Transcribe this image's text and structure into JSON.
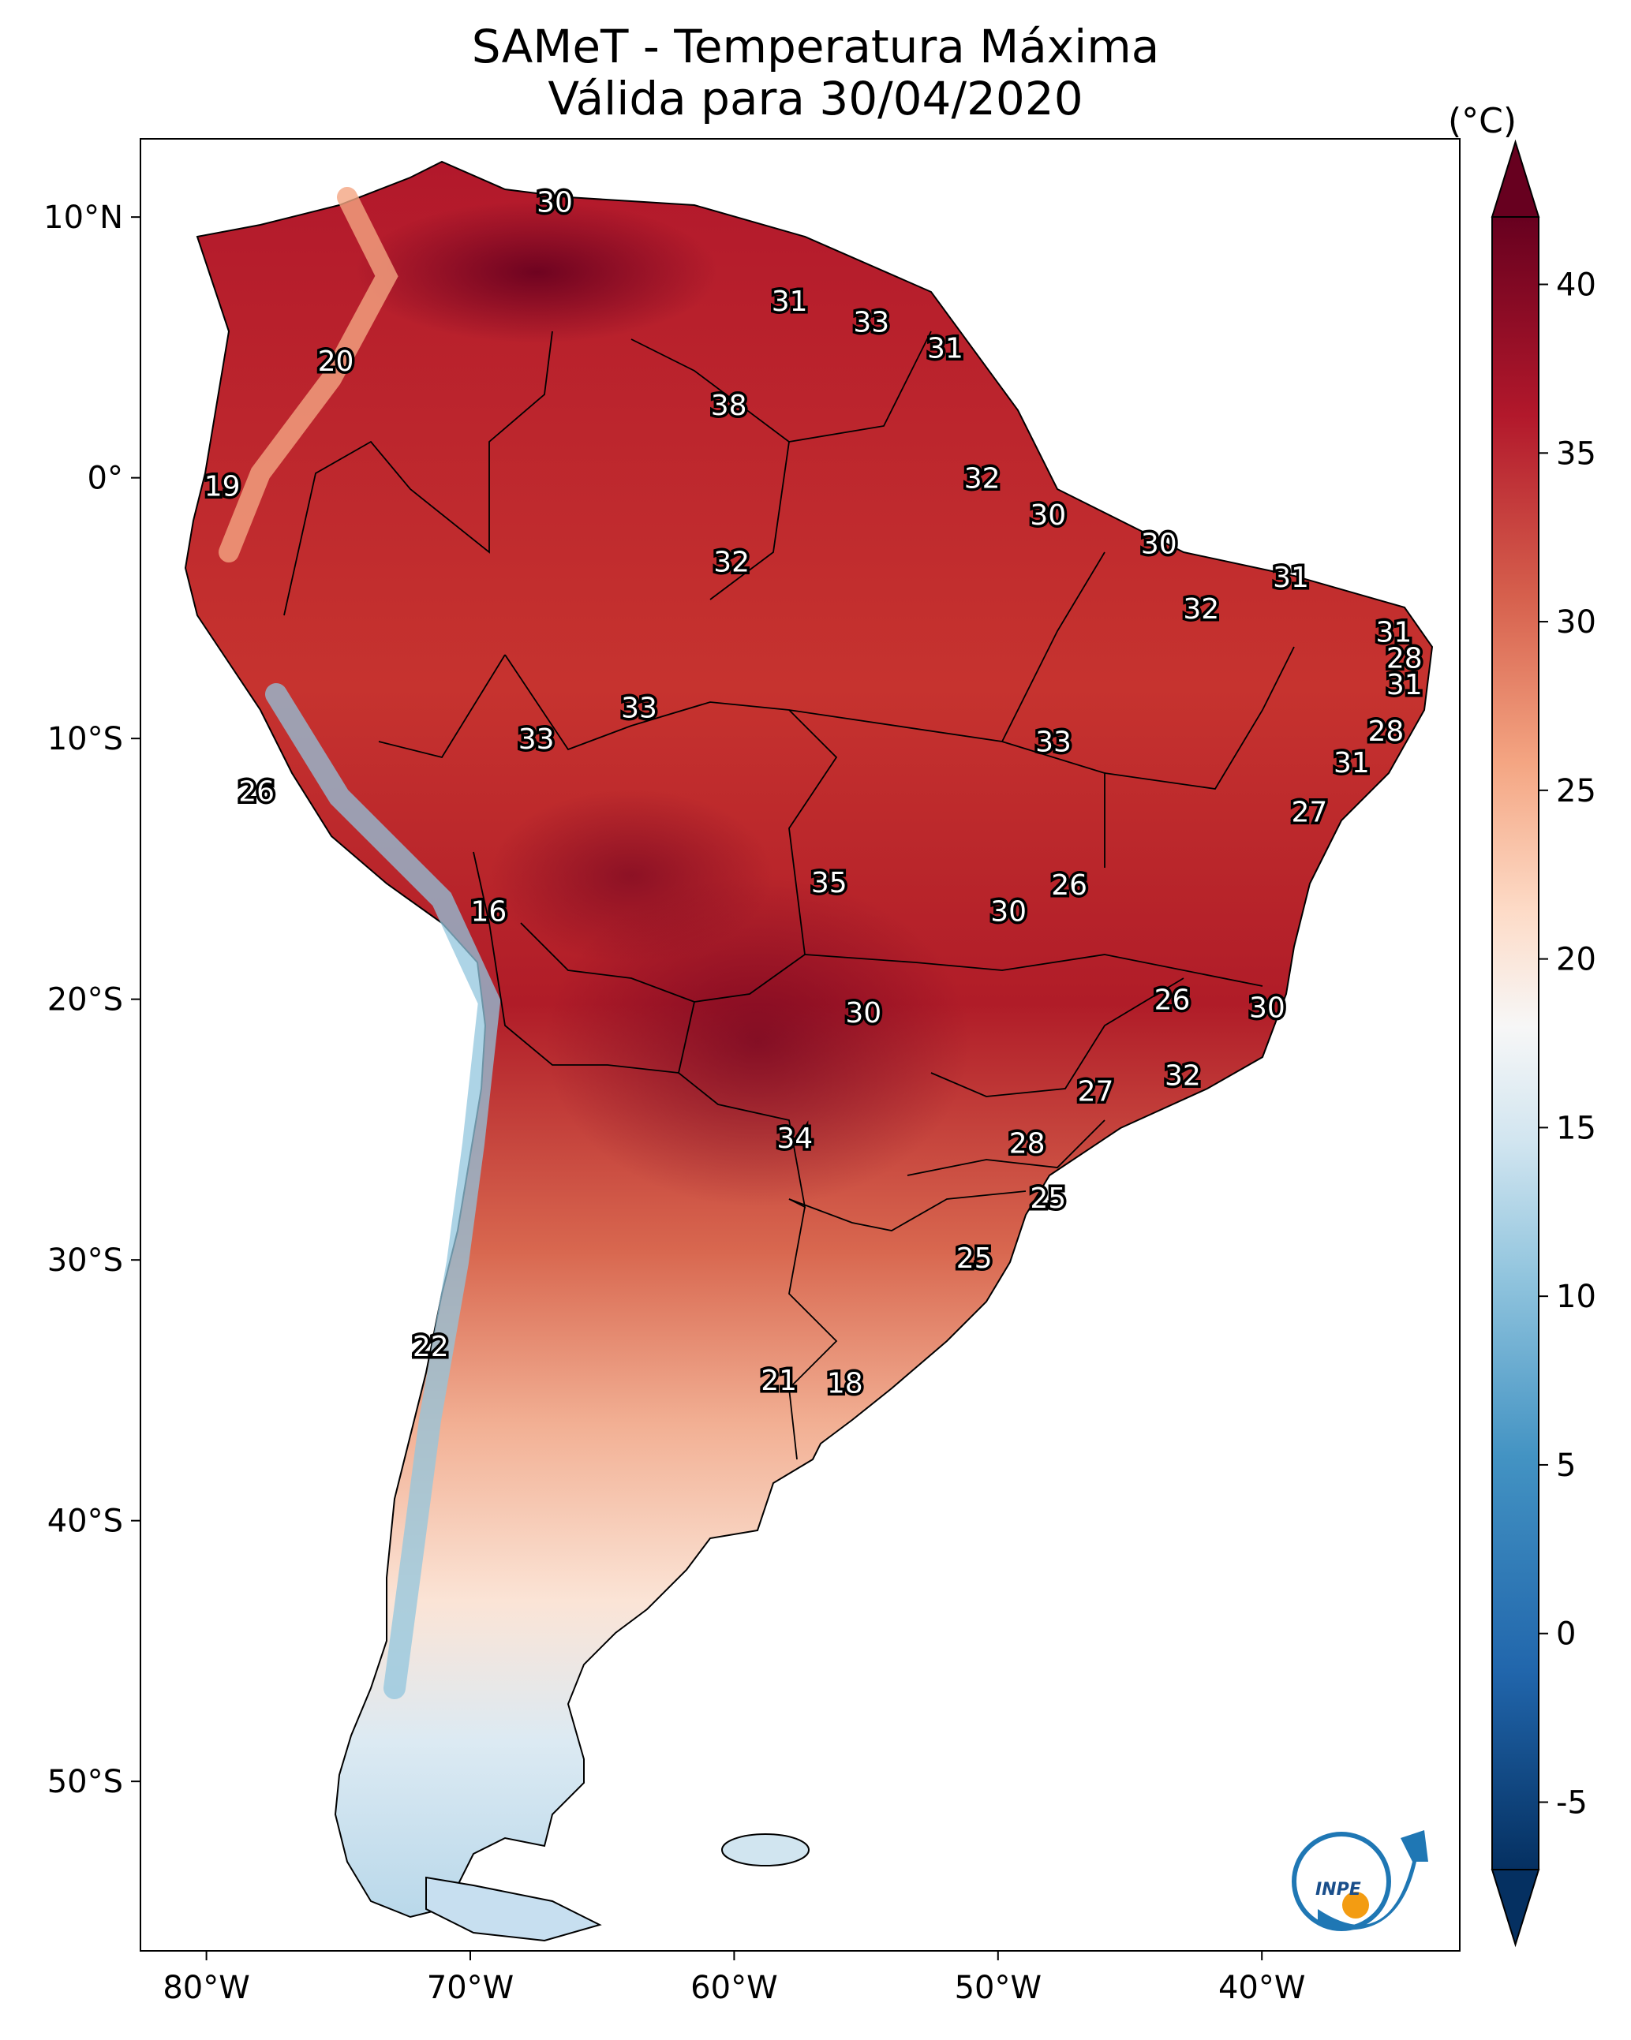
{
  "title": {
    "line1": "SAMeT - Temperatura Máxima",
    "line2": "Válida para 30/04/2020"
  },
  "colorbar": {
    "unit": "(°C)",
    "ticks": [
      40,
      35,
      30,
      25,
      20,
      15,
      10,
      5,
      0,
      -5
    ],
    "tick_labels": [
      "40",
      "35",
      "30",
      "25",
      "20",
      "15",
      "10",
      "5",
      "0",
      "-5"
    ],
    "range": [
      -7,
      42
    ],
    "colors": [
      "#053061",
      "#2166ac",
      "#4393c3",
      "#92c5de",
      "#d1e5f0",
      "#f7f7f7",
      "#fddbc7",
      "#f4a582",
      "#d6604d",
      "#b2182b",
      "#67001f"
    ]
  },
  "axes": {
    "lon_labels": [
      "80°W",
      "70°W",
      "60°W",
      "50°W",
      "40°W"
    ],
    "lat_labels": [
      "10°N",
      "0°",
      "10°S",
      "20°S",
      "30°S",
      "40°S",
      "50°S"
    ]
  },
  "map_data": {
    "lon_range": [
      -82.5,
      -32.5
    ],
    "lat_range": [
      -56.5,
      13
    ],
    "labels": [
      {
        "text": "30",
        "lon": -66.8,
        "lat": 10.6
      },
      {
        "text": "31",
        "lon": -57.9,
        "lat": 6.8
      },
      {
        "text": "33",
        "lon": -54.8,
        "lat": 6.0
      },
      {
        "text": "31",
        "lon": -52.0,
        "lat": 5.0
      },
      {
        "text": "20",
        "lon": -75.1,
        "lat": 4.5
      },
      {
        "text": "38",
        "lon": -60.2,
        "lat": 2.8
      },
      {
        "text": "32",
        "lon": -50.6,
        "lat": 0.0
      },
      {
        "text": "19",
        "lon": -79.4,
        "lat": -0.3
      },
      {
        "text": "30",
        "lon": -48.1,
        "lat": -1.4
      },
      {
        "text": "30",
        "lon": -43.9,
        "lat": -2.5
      },
      {
        "text": "32",
        "lon": -60.1,
        "lat": -3.2
      },
      {
        "text": "31",
        "lon": -38.9,
        "lat": -3.8
      },
      {
        "text": "32",
        "lon": -42.3,
        "lat": -5.0
      },
      {
        "text": "31",
        "lon": -35.0,
        "lat": -5.9
      },
      {
        "text": "28",
        "lon": -34.6,
        "lat": -6.9
      },
      {
        "text": "31",
        "lon": -34.6,
        "lat": -7.9
      },
      {
        "text": "33",
        "lon": -63.6,
        "lat": -8.8
      },
      {
        "text": "28",
        "lon": -35.3,
        "lat": -9.7
      },
      {
        "text": "33",
        "lon": -67.5,
        "lat": -10.0
      },
      {
        "text": "33",
        "lon": -47.9,
        "lat": -10.1
      },
      {
        "text": "31",
        "lon": -36.6,
        "lat": -10.9
      },
      {
        "text": "26",
        "lon": -78.1,
        "lat": -12.0
      },
      {
        "text": "27",
        "lon": -38.2,
        "lat": -12.8
      },
      {
        "text": "35",
        "lon": -56.4,
        "lat": -15.5
      },
      {
        "text": "26",
        "lon": -47.3,
        "lat": -15.6
      },
      {
        "text": "16",
        "lon": -69.3,
        "lat": -16.6
      },
      {
        "text": "30",
        "lon": -49.6,
        "lat": -16.6
      },
      {
        "text": "26",
        "lon": -43.4,
        "lat": -20.0
      },
      {
        "text": "30",
        "lon": -55.1,
        "lat": -20.5
      },
      {
        "text": "30",
        "lon": -39.8,
        "lat": -20.3
      },
      {
        "text": "32",
        "lon": -43.0,
        "lat": -22.9
      },
      {
        "text": "27",
        "lon": -46.3,
        "lat": -23.5
      },
      {
        "text": "28",
        "lon": -48.9,
        "lat": -25.5
      },
      {
        "text": "34",
        "lon": -57.7,
        "lat": -25.3
      },
      {
        "text": "25",
        "lon": -48.1,
        "lat": -27.6
      },
      {
        "text": "25",
        "lon": -50.9,
        "lat": -29.9
      },
      {
        "text": "22",
        "lon": -71.5,
        "lat": -33.3
      },
      {
        "text": "21",
        "lon": -58.3,
        "lat": -34.6
      },
      {
        "text": "18",
        "lon": -55.8,
        "lat": -34.7
      }
    ]
  },
  "logo": {
    "text": "INPE"
  }
}
